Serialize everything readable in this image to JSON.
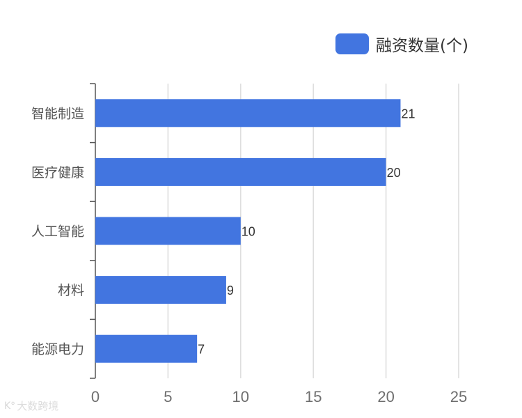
{
  "chart_data": {
    "type": "bar",
    "orientation": "horizontal",
    "categories": [
      "智能制造",
      "医疗健康",
      "人工智能",
      "材料",
      "能源电力"
    ],
    "series": [
      {
        "name": "融资数量(个)",
        "values": [
          21,
          20,
          10,
          9,
          7
        ],
        "color": "#4275e0"
      }
    ],
    "xlim": [
      0,
      25
    ],
    "xticks": [
      0,
      5,
      10,
      15,
      20,
      25
    ],
    "grid": true,
    "legend_position": "top-right",
    "data_labels": true
  },
  "watermark": {
    "logo": "K°",
    "text": "大数跨境"
  }
}
